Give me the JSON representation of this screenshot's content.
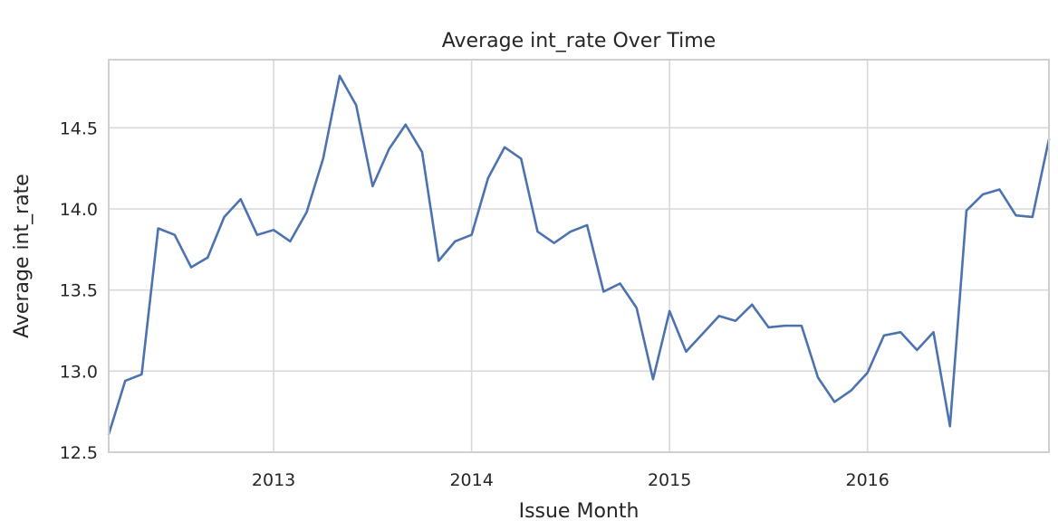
{
  "chart_data": {
    "type": "line",
    "title": "Average int_rate Over Time",
    "xlabel": "Issue Month",
    "ylabel": "Average int_rate",
    "x_ticks": [
      "2013",
      "2014",
      "2015",
      "2016"
    ],
    "y_ticks": [
      "12.5",
      "13.0",
      "13.5",
      "14.0",
      "14.5"
    ],
    "xlim": [
      "2012-03",
      "2016-12"
    ],
    "ylim": [
      12.5,
      14.92
    ],
    "grid": true,
    "series": [
      {
        "color": "#4c72b0",
        "x": [
          "2012-03",
          "2012-04",
          "2012-05",
          "2012-06",
          "2012-07",
          "2012-08",
          "2012-09",
          "2012-10",
          "2012-11",
          "2012-12",
          "2013-01",
          "2013-02",
          "2013-03",
          "2013-04",
          "2013-05",
          "2013-06",
          "2013-07",
          "2013-08",
          "2013-09",
          "2013-10",
          "2013-11",
          "2013-12",
          "2014-01",
          "2014-02",
          "2014-03",
          "2014-04",
          "2014-05",
          "2014-06",
          "2014-07",
          "2014-08",
          "2014-09",
          "2014-10",
          "2014-11",
          "2014-12",
          "2015-01",
          "2015-02",
          "2015-03",
          "2015-04",
          "2015-05",
          "2015-06",
          "2015-07",
          "2015-08",
          "2015-09",
          "2015-10",
          "2015-11",
          "2015-12",
          "2016-01",
          "2016-02",
          "2016-03",
          "2016-04",
          "2016-05",
          "2016-06",
          "2016-07",
          "2016-08",
          "2016-09",
          "2016-10",
          "2016-11",
          "2016-12"
        ],
        "values": [
          12.61,
          12.94,
          12.98,
          13.88,
          13.84,
          13.64,
          13.7,
          13.95,
          14.06,
          13.84,
          13.87,
          13.8,
          13.98,
          14.31,
          14.82,
          14.64,
          14.14,
          14.37,
          14.52,
          14.35,
          13.68,
          13.8,
          13.84,
          14.19,
          14.38,
          14.31,
          13.86,
          13.79,
          13.86,
          13.9,
          13.49,
          13.54,
          13.39,
          12.95,
          13.37,
          13.12,
          13.23,
          13.34,
          13.31,
          13.41,
          13.27,
          13.28,
          13.28,
          12.96,
          12.81,
          12.88,
          12.99,
          13.22,
          13.24,
          13.13,
          13.24,
          12.66,
          13.99,
          14.09,
          14.12,
          13.96,
          13.95,
          14.43
        ]
      }
    ]
  }
}
